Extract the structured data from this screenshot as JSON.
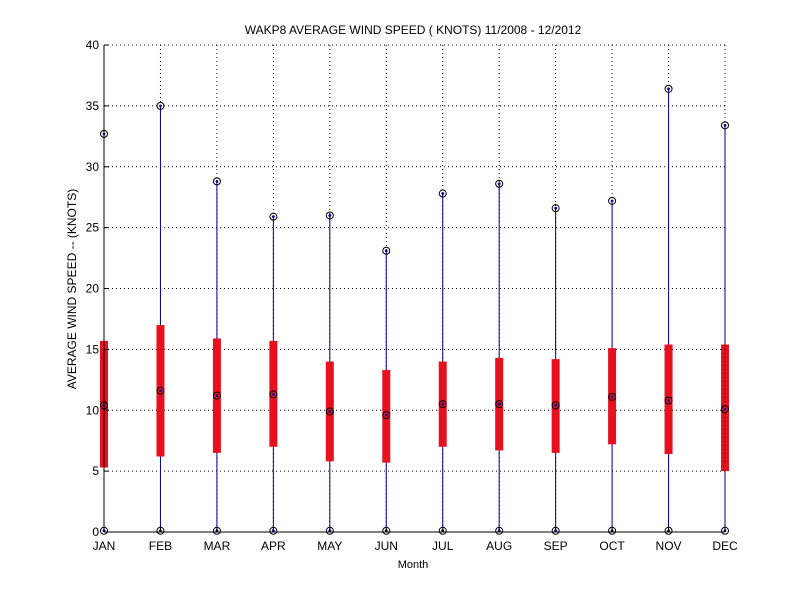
{
  "chart_data": {
    "type": "boxplot",
    "title": "WAKP8  AVERAGE WIND SPEED ( KNOTS) 11/2008 - 12/2012",
    "xlabel": "Month",
    "ylabel": "AVERAGE WIND SPEED -- (KNOTS)",
    "ylim": [
      0,
      40
    ],
    "yticks": [
      0,
      5,
      10,
      15,
      20,
      25,
      30,
      35,
      40
    ],
    "grid": true,
    "categories": [
      "JAN",
      "FEB",
      "MAR",
      "APR",
      "MAY",
      "JUN",
      "JUL",
      "AUG",
      "SEP",
      "OCT",
      "NOV",
      "DEC"
    ],
    "min": [
      0.1,
      0.1,
      0.1,
      0.1,
      0.1,
      0.1,
      0.1,
      0.1,
      0.1,
      0.1,
      0.1,
      0.1
    ],
    "q1": [
      5.3,
      6.2,
      6.5,
      7.0,
      5.8,
      5.7,
      7.0,
      6.7,
      6.5,
      7.2,
      6.4,
      5.0
    ],
    "median": [
      10.4,
      11.6,
      11.2,
      11.3,
      9.9,
      9.6,
      10.5,
      10.5,
      10.4,
      11.1,
      10.8,
      10.1
    ],
    "q3": [
      15.7,
      17.0,
      15.9,
      15.7,
      14.0,
      13.3,
      14.0,
      14.3,
      14.2,
      15.1,
      15.4,
      15.4
    ],
    "max": [
      32.7,
      35.0,
      28.8,
      25.9,
      26.0,
      23.1,
      27.8,
      28.6,
      26.6,
      27.2,
      36.4,
      33.4
    ],
    "colors": {
      "whisker": "#0000a0",
      "box": "#e8101e",
      "marker": "#000000",
      "grid": "#000000",
      "axis": "#000000"
    }
  }
}
